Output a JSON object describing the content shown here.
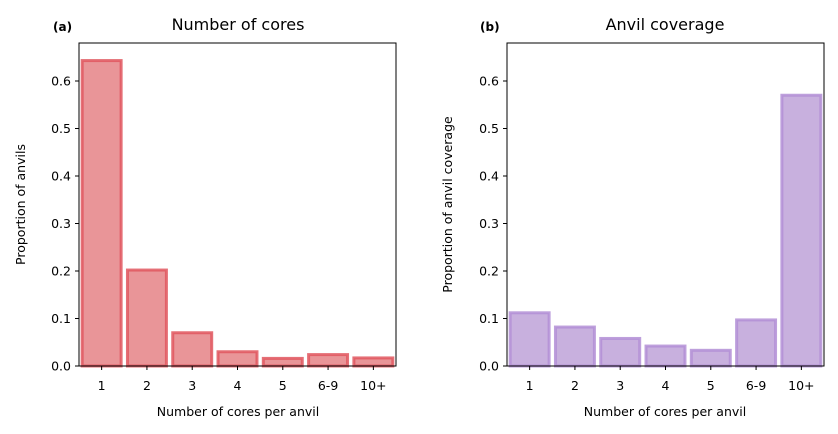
{
  "chart_data": [
    {
      "type": "bar",
      "panel_label": "(a)",
      "title": "Number of cores",
      "xlabel": "Number of cores per anvil",
      "ylabel": "Proportion of anvils",
      "categories": [
        "1",
        "2",
        "3",
        "4",
        "5",
        "6-9",
        "10+"
      ],
      "values": [
        0.643,
        0.202,
        0.07,
        0.03,
        0.016,
        0.024,
        0.017
      ],
      "ylim": [
        0,
        0.68
      ],
      "yticks": [
        "0.0",
        "0.1",
        "0.2",
        "0.3",
        "0.4",
        "0.5",
        "0.6"
      ],
      "grid": false,
      "colors": {
        "fill": "#e99598",
        "edge": "#e0575f"
      }
    },
    {
      "type": "bar",
      "panel_label": "(b)",
      "title": "Anvil coverage",
      "xlabel": "Number of cores per anvil",
      "ylabel": "Proportion of anvil coverage",
      "categories": [
        "1",
        "2",
        "3",
        "4",
        "5",
        "6-9",
        "10+"
      ],
      "values": [
        0.112,
        0.082,
        0.058,
        0.042,
        0.033,
        0.097,
        0.57
      ],
      "ylim": [
        0,
        0.68
      ],
      "yticks": [
        "0.0",
        "0.1",
        "0.2",
        "0.3",
        "0.4",
        "0.5",
        "0.6"
      ],
      "grid": false,
      "colors": {
        "fill": "#c8b0de",
        "edge": "#b38fd6"
      }
    }
  ]
}
